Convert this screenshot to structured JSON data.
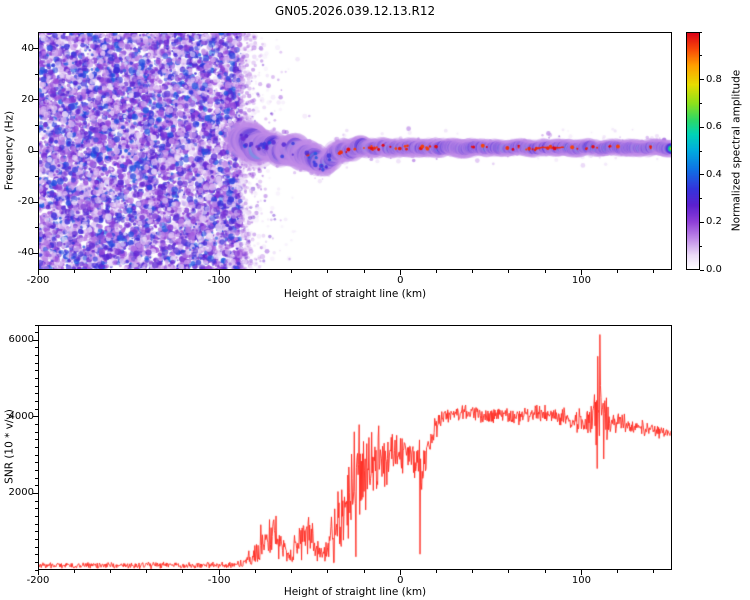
{
  "title": "GN05.2026.039.12.13.R12",
  "chart_data": [
    {
      "type": "heatmap",
      "name": "spectrogram",
      "xlabel": "Height of straight line (km)",
      "ylabel": "Frequency (Hz)",
      "xlim": [
        -200,
        150
      ],
      "ylim": [
        -46.5,
        46.5
      ],
      "xticks": [
        -200,
        -100,
        0,
        100
      ],
      "yticks": [
        -40,
        -20,
        0,
        20,
        40
      ],
      "x_minor_step": 20,
      "y_minor_step": 10,
      "colorbar": {
        "label": "Normalized spectral amplitude",
        "ticks": [
          "0.0",
          "0.2",
          "0.4",
          "0.6",
          "0.8"
        ],
        "tick_values": [
          0,
          0.2,
          0.4,
          0.6,
          0.8
        ],
        "minor_step": 0.1,
        "range": [
          0,
          1
        ]
      },
      "colormap_stops": [
        [
          0.0,
          "#ffffff"
        ],
        [
          0.06,
          "#ecdcf8"
        ],
        [
          0.13,
          "#c08ae8"
        ],
        [
          0.2,
          "#9040d8"
        ],
        [
          0.27,
          "#5c20d0"
        ],
        [
          0.34,
          "#3434dc"
        ],
        [
          0.42,
          "#1070e4"
        ],
        [
          0.5,
          "#00abe0"
        ],
        [
          0.57,
          "#00d4b8"
        ],
        [
          0.63,
          "#2cd868"
        ],
        [
          0.7,
          "#8ce01c"
        ],
        [
          0.78,
          "#e8dc00"
        ],
        [
          0.86,
          "#ffa000"
        ],
        [
          0.93,
          "#f84808"
        ],
        [
          1.0,
          "#dc0018"
        ]
      ],
      "noise_region": {
        "x_range": [
          -200,
          -88
        ],
        "amplitude_range": [
          0,
          0.4
        ]
      },
      "signal_trace": {
        "x_range": [
          -88,
          150
        ],
        "peak_amplitude": 1.0,
        "center_freq_anchors": [
          [
            -88,
            4.5
          ],
          [
            -85,
            3
          ],
          [
            -82,
            4
          ],
          [
            -79,
            1.5
          ],
          [
            -76,
            3
          ],
          [
            -73,
            0.5
          ],
          [
            -70,
            2
          ],
          [
            -67,
            -0.5
          ],
          [
            -64,
            1.5
          ],
          [
            -61,
            -1
          ],
          [
            -58,
            0.5
          ],
          [
            -55,
            -1.5
          ],
          [
            -52,
            -0.5
          ],
          [
            -49,
            -3
          ],
          [
            -46,
            -4.5
          ],
          [
            -43,
            -5
          ],
          [
            -40,
            -3.5
          ],
          [
            -37,
            -2
          ],
          [
            -34,
            -0.5
          ],
          [
            -31,
            0.5
          ],
          [
            -28,
            0
          ],
          [
            -25,
            1
          ],
          [
            -22,
            2
          ],
          [
            -19,
            1
          ],
          [
            -16,
            1.5
          ],
          [
            -13,
            1
          ],
          [
            -10,
            1.5
          ],
          [
            -6,
            1
          ],
          [
            -2,
            1.5
          ],
          [
            2,
            1
          ],
          [
            8,
            1.5
          ],
          [
            15,
            1
          ],
          [
            25,
            1.5
          ],
          [
            35,
            1
          ],
          [
            45,
            1.5
          ],
          [
            55,
            1
          ],
          [
            65,
            1.5
          ],
          [
            75,
            1
          ],
          [
            85,
            1.5
          ],
          [
            95,
            1
          ],
          [
            105,
            1.5
          ],
          [
            110,
            1
          ],
          [
            120,
            1.5
          ],
          [
            130,
            1
          ],
          [
            140,
            1.5
          ],
          [
            150,
            1
          ]
        ]
      }
    },
    {
      "type": "line",
      "name": "snr",
      "xlabel": "Height of straight line (km)",
      "ylabel": "SNR (10 * v/v)",
      "xlim": [
        -200,
        150
      ],
      "ylim": [
        0,
        6400
      ],
      "xticks": [
        -200,
        -100,
        0,
        100
      ],
      "yticks": [
        2000,
        4000,
        6000
      ],
      "x_minor_step": 20,
      "y_minor_step": 200,
      "line_color": "#ff2a20",
      "series": [
        {
          "name": "SNR",
          "anchors": [
            [
              -200,
              120,
              100
            ],
            [
              -100,
              120,
              100
            ],
            [
              -92,
              130,
              110
            ],
            [
              -86,
              200,
              160
            ],
            [
              -80,
              420,
              350
            ],
            [
              -76,
              750,
              600
            ],
            [
              -71,
              950,
              850
            ],
            [
              -68,
              900,
              800
            ],
            [
              -64,
              500,
              380
            ],
            [
              -61,
              330,
              220
            ],
            [
              -58,
              600,
              450
            ],
            [
              -54,
              850,
              700
            ],
            [
              -50,
              900,
              750
            ],
            [
              -47,
              650,
              500
            ],
            [
              -44,
              380,
              250
            ],
            [
              -41,
              520,
              400
            ],
            [
              -38,
              1100,
              850
            ],
            [
              -35,
              1500,
              1100
            ],
            [
              -32,
              1450,
              1100
            ],
            [
              -29,
              1900,
              1300
            ],
            [
              -26,
              2100,
              1400
            ],
            [
              -23,
              2500,
              1600
            ],
            [
              -20,
              2600,
              1600
            ],
            [
              -17,
              2500,
              1400
            ],
            [
              -14,
              2700,
              1200
            ],
            [
              -11,
              2800,
              1100
            ],
            [
              -8,
              2900,
              1000
            ],
            [
              -5,
              3000,
              900
            ],
            [
              -2,
              3050,
              800
            ],
            [
              0,
              3100,
              700
            ],
            [
              4,
              3150,
              600
            ],
            [
              8,
              2900,
              800
            ],
            [
              12,
              2700,
              900
            ],
            [
              15,
              3300,
              500
            ],
            [
              18,
              3600,
              380
            ],
            [
              22,
              3900,
              300
            ],
            [
              26,
              4050,
              260
            ],
            [
              35,
              4100,
              240
            ],
            [
              45,
              4080,
              240
            ],
            [
              55,
              4020,
              240
            ],
            [
              65,
              4000,
              250
            ],
            [
              75,
              4050,
              260
            ],
            [
              85,
              4050,
              280
            ],
            [
              92,
              3950,
              300
            ],
            [
              98,
              3900,
              380
            ],
            [
              103,
              3850,
              450
            ],
            [
              107,
              4000,
              800
            ],
            [
              110,
              4600,
              1400
            ],
            [
              112,
              4100,
              1000
            ],
            [
              115,
              3850,
              450
            ],
            [
              120,
              3820,
              320
            ],
            [
              128,
              3760,
              260
            ],
            [
              136,
              3700,
              230
            ],
            [
              144,
              3620,
              210
            ],
            [
              150,
              3580,
              200
            ]
          ],
          "spikes": [
            [
              110.1,
              6150
            ],
            [
              108.6,
              2650
            ],
            [
              112.3,
              2900
            ]
          ]
        }
      ]
    }
  ]
}
